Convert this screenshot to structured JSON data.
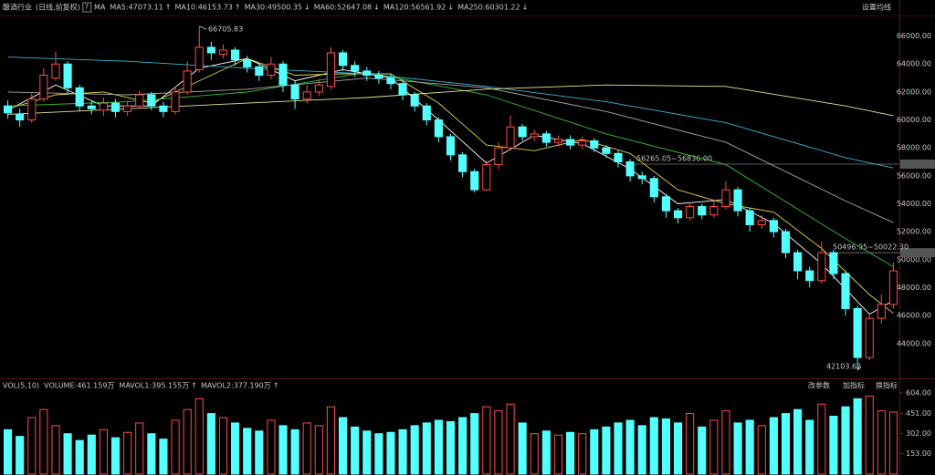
{
  "toolbar": {
    "title": "酿酒行业",
    "period": "(日线,前复权)",
    "help": "?",
    "settings": "设置均线"
  },
  "chart_data": [
    {
      "type": "candlestick",
      "label": "MA",
      "open": [
        61000,
        60400,
        60000,
        61500,
        63000,
        64000,
        62300,
        61000,
        60700,
        61200,
        60600,
        61000,
        61800,
        61000,
        60600,
        62000,
        63600,
        65200,
        64700,
        65000,
        64300,
        63800,
        63200,
        64000,
        62500,
        61500,
        62000,
        62400,
        64800,
        63900,
        63500,
        63200,
        63000,
        62600,
        61800,
        61000,
        60000,
        58800,
        57500,
        56300,
        55000,
        56800,
        58000,
        59500,
        58800,
        59000,
        58400,
        58600,
        58200,
        58500,
        58000,
        57600,
        57000,
        56000,
        55800,
        54500,
        53500,
        53000,
        53800,
        53200,
        53800,
        55000,
        53500,
        52500,
        52800,
        52000,
        50500,
        49200,
        48500,
        50500,
        49000,
        46500,
        43000,
        45800,
        46800
      ],
      "high": [
        61400,
        60800,
        61900,
        63700,
        64900,
        64200,
        62500,
        61400,
        61600,
        61500,
        61300,
        62100,
        62000,
        61300,
        62400,
        64200,
        66705.83,
        65600,
        65400,
        65200,
        64600,
        64100,
        64500,
        64200,
        62800,
        62500,
        62900,
        65200,
        65000,
        64200,
        63800,
        63500,
        63300,
        62900,
        62000,
        61200,
        60200,
        59000,
        57700,
        56500,
        57100,
        58400,
        60300,
        59700,
        59300,
        59200,
        58900,
        58900,
        58800,
        58700,
        58200,
        57800,
        57200,
        56300,
        56000,
        54700,
        53700,
        54100,
        54000,
        54200,
        55600,
        55200,
        53700,
        53200,
        53000,
        52200,
        50700,
        49500,
        51300,
        50700,
        49200,
        46700,
        46200,
        47500,
        49800
      ],
      "low": [
        60100,
        59500,
        59800,
        61300,
        62800,
        61900,
        60600,
        60400,
        60300,
        60200,
        60300,
        60800,
        60700,
        60200,
        60400,
        61800,
        63400,
        64300,
        64400,
        63900,
        63400,
        62800,
        62900,
        62000,
        60800,
        61200,
        61700,
        62200,
        63500,
        63100,
        62800,
        62600,
        62200,
        61400,
        60600,
        59600,
        58400,
        57100,
        55900,
        54800,
        54900,
        56500,
        57800,
        58500,
        58500,
        58100,
        58100,
        57900,
        57900,
        57700,
        57300,
        56600,
        55600,
        55400,
        54100,
        53000,
        52600,
        52800,
        52900,
        53000,
        53600,
        53100,
        52000,
        52200,
        51600,
        50100,
        48600,
        48000,
        48300,
        48600,
        46000,
        42103.62,
        42800,
        45400,
        46500
      ],
      "close": [
        60500,
        60000,
        61500,
        63200,
        64000,
        62300,
        61000,
        60800,
        61200,
        60600,
        61000,
        61800,
        61000,
        60600,
        62000,
        63500,
        65200,
        64800,
        65000,
        64300,
        63800,
        63200,
        64000,
        62500,
        61500,
        62000,
        62500,
        64800,
        63900,
        63500,
        63200,
        63000,
        62600,
        61800,
        61000,
        60000,
        58800,
        57500,
        56300,
        55000,
        56800,
        58000,
        59500,
        58800,
        59000,
        58400,
        58600,
        58200,
        58500,
        58000,
        57600,
        57000,
        56000,
        55800,
        54500,
        53500,
        53000,
        53800,
        53200,
        53800,
        55000,
        53500,
        52500,
        52800,
        52000,
        50500,
        49200,
        48500,
        50500,
        49000,
        46500,
        43000,
        45800,
        46800,
        49200
      ],
      "up_color": "#ff4a4a",
      "down_color": "#54ffff",
      "ylim": [
        41700,
        67800
      ],
      "yticks": [
        {
          "value": 44000,
          "label": "44000.00"
        },
        {
          "value": 46000,
          "label": "46000.00"
        },
        {
          "value": 48000,
          "label": "48000.00"
        },
        {
          "value": 50000,
          "label": "50000.00"
        },
        {
          "value": 52000,
          "label": "52000.00"
        },
        {
          "value": 54000,
          "label": "54000.00"
        },
        {
          "value": 56000,
          "label": "56000.00"
        },
        {
          "value": 58000,
          "label": "58000.00"
        },
        {
          "value": 60000,
          "label": "60000.00"
        },
        {
          "value": 62000,
          "label": "62000.00"
        },
        {
          "value": 64000,
          "label": "64000.00"
        },
        {
          "value": 66000,
          "label": "66000.00"
        }
      ],
      "series": [
        {
          "name": "MA5:47073.11",
          "trend": "↑",
          "color": "#ffffff",
          "x": [
            0,
            4,
            8,
            12,
            16,
            20,
            24,
            28,
            32,
            36,
            40,
            44,
            48,
            52,
            56,
            60,
            64,
            68,
            72,
            74
          ],
          "values": [
            60700,
            62500,
            61000,
            61000,
            63700,
            64400,
            62800,
            63600,
            63000,
            60000,
            56900,
            58900,
            58300,
            56500,
            54000,
            54300,
            52600,
            49700,
            46100,
            47073.11
          ]
        },
        {
          "name": "MA10:46153.73",
          "trend": "↑",
          "color": "#e6d53c",
          "x": [
            0,
            4,
            8,
            12,
            16,
            20,
            24,
            28,
            32,
            36,
            40,
            44,
            48,
            52,
            56,
            60,
            64,
            68,
            72,
            74
          ],
          "values": [
            60800,
            61800,
            62000,
            61200,
            62800,
            64400,
            63200,
            63300,
            63300,
            61200,
            58200,
            57800,
            58600,
            57600,
            55000,
            54000,
            53400,
            50800,
            47500,
            46153.73
          ]
        },
        {
          "name": "MA30:49500.35",
          "trend": "↓",
          "color": "#33c033",
          "x": [
            0,
            10,
            20,
            30,
            40,
            50,
            60,
            70,
            74
          ],
          "values": [
            61000,
            61300,
            62000,
            63400,
            61800,
            59000,
            56800,
            51500,
            49500.35
          ]
        },
        {
          "name": "MA60:52647.08",
          "trend": "↓",
          "color": "#a8a8a8",
          "x": [
            0,
            10,
            20,
            30,
            40,
            50,
            60,
            70,
            74
          ],
          "values": [
            62000,
            61800,
            62200,
            63000,
            62300,
            60600,
            58400,
            54200,
            52647.08
          ]
        },
        {
          "name": "MA120:56561.92",
          "trend": "↓",
          "color": "#33b5d0",
          "x": [
            0,
            10,
            20,
            30,
            40,
            50,
            60,
            70,
            74
          ],
          "values": [
            64500,
            64200,
            63700,
            63300,
            62400,
            61300,
            59800,
            57300,
            56561.92
          ]
        },
        {
          "name": "MA250:60301.22",
          "trend": "↓",
          "color": "#e5e58a",
          "x": [
            0,
            10,
            20,
            30,
            40,
            50,
            60,
            70,
            74
          ],
          "values": [
            60400,
            60800,
            61200,
            61600,
            62200,
            62500,
            62400,
            61000,
            60301.22
          ]
        }
      ],
      "annotations": [
        {
          "text": "66705.83"
        },
        {
          "text": "42103.62"
        }
      ],
      "price_lines": [
        {
          "label": "56265.05~56836.00",
          "value": 56836
        },
        {
          "label": "50496.95~50022.30",
          "value": 50496.95
        }
      ]
    },
    {
      "type": "bar",
      "title": "VOL(5,10)",
      "legend": [
        {
          "name": "VOLUME:461.159万",
          "color": "#ffffff"
        },
        {
          "name": "MAVOL1:395.155万",
          "trend": "↑",
          "color": "#e6d53c"
        },
        {
          "name": "MAVOL2:377.190万",
          "trend": "↑",
          "color": "#e040e0"
        }
      ],
      "values": [
        330,
        280,
        420,
        480,
        360,
        300,
        250,
        290,
        330,
        270,
        310,
        380,
        300,
        260,
        400,
        480,
        560,
        450,
        420,
        380,
        340,
        320,
        400,
        360,
        330,
        380,
        360,
        500,
        420,
        350,
        320,
        300,
        310,
        330,
        360,
        380,
        400,
        390,
        420,
        450,
        500,
        470,
        520,
        380,
        300,
        320,
        290,
        310,
        300,
        330,
        350,
        380,
        400,
        360,
        420,
        410,
        380,
        450,
        350,
        400,
        470,
        380,
        400,
        360,
        420,
        450,
        480,
        400,
        520,
        430,
        500,
        560,
        580,
        470,
        461.159
      ],
      "ylim": [
        0,
        637
      ],
      "yticks": [
        {
          "value": 153,
          "label": "153.00"
        },
        {
          "value": 302,
          "label": "302.00"
        },
        {
          "value": 451,
          "label": "451.00"
        },
        {
          "value": 604,
          "label": "604.00"
        }
      ],
      "buttons": [
        "改参数",
        "加指标",
        "换指标"
      ]
    }
  ]
}
